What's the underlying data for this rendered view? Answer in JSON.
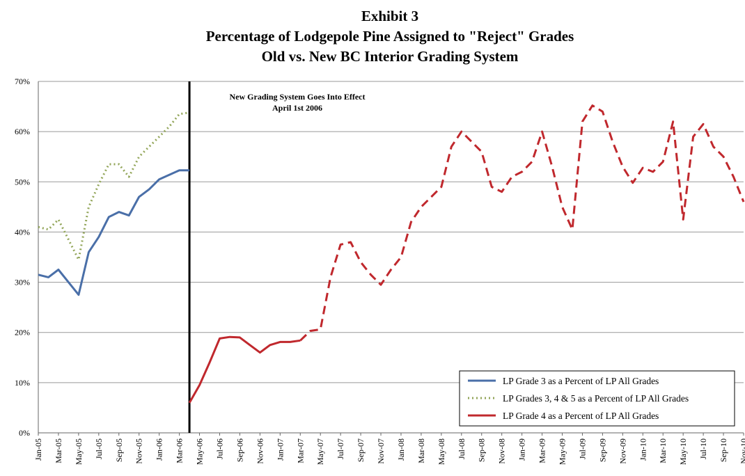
{
  "chart_data": {
    "type": "line",
    "title": [
      "Exhibit 3",
      "Percentage of Lodgepole Pine Assigned to \"Reject\" Grades",
      "Old vs. New BC Interior Grading System"
    ],
    "categories": [
      "Jan-05",
      null,
      "Mar-05",
      null,
      "May-05",
      null,
      "Jul-05",
      null,
      "Sep-05",
      null,
      "Nov-05",
      null,
      "Jan-06",
      null,
      "Mar-06",
      null,
      "May-06",
      null,
      "Jul-06",
      null,
      "Sep-06",
      null,
      "Nov-06",
      null,
      "Jan-07",
      null,
      "Mar-07",
      null,
      "May-07",
      null,
      "Jul-07",
      null,
      "Sep-07",
      null,
      "Nov-07",
      null,
      "Jan-08",
      null,
      "Mar-08",
      null,
      "May-08",
      null,
      "Jul-08",
      null,
      "Sep-08",
      null,
      "Nov-08",
      null,
      "Jan-09",
      null,
      "Mar-09",
      null,
      "May-09",
      null,
      "Jul-09",
      null,
      "Sep-09",
      null,
      "Nov-09",
      null,
      "Jan-10",
      null,
      "Mar-10",
      null,
      "May-10",
      null,
      "Jul-10",
      null,
      "Sep-10",
      null,
      "Nov-10"
    ],
    "series": [
      {
        "name": "LP Grade 3 as a Percent of LP All Grades",
        "color": "#4a6fa8",
        "style": "solid",
        "values": [
          31.5,
          31,
          32.5,
          30,
          27.5,
          36,
          39,
          43,
          44,
          43.3,
          47,
          48.5,
          50.5,
          51.4,
          52.3,
          52.3,
          null,
          null,
          null,
          null,
          null,
          null,
          null,
          null,
          null,
          null,
          null,
          null,
          null,
          null,
          null,
          null,
          null,
          null,
          null,
          null,
          null,
          null,
          null,
          null,
          null,
          null,
          null,
          null,
          null,
          null,
          null,
          null,
          null,
          null,
          null,
          null,
          null,
          null,
          null,
          null,
          null,
          null,
          null,
          null,
          null,
          null,
          null,
          null,
          null,
          null,
          null,
          null,
          null,
          null,
          null
        ]
      },
      {
        "name": "LP Grades 3, 4 & 5 as a Percent of LP All Grades",
        "color": "#93a65a",
        "style": "dotted",
        "values": [
          41,
          40.5,
          42.5,
          38.5,
          34.5,
          45,
          49.5,
          53.5,
          53.5,
          51,
          55,
          57,
          59,
          61,
          63.5,
          63.8,
          null,
          null,
          null,
          null,
          null,
          null,
          null,
          null,
          null,
          null,
          null,
          null,
          null,
          null,
          null,
          null,
          null,
          null,
          null,
          null,
          null,
          null,
          null,
          null,
          null,
          null,
          null,
          null,
          null,
          null,
          null,
          null,
          null,
          null,
          null,
          null,
          null,
          null,
          null,
          null,
          null,
          null,
          null,
          null,
          null,
          null,
          null,
          null,
          null,
          null,
          null,
          null,
          null,
          null,
          null
        ]
      },
      {
        "name": "LP Grade 4 as a Percent of LP All Grades",
        "color": "#c0282d",
        "style": "solid",
        "dashed_from_index": 26,
        "values": [
          null,
          null,
          null,
          null,
          null,
          null,
          null,
          null,
          null,
          null,
          null,
          null,
          null,
          null,
          null,
          6,
          9.5,
          14,
          18.8,
          19.1,
          19,
          17.5,
          16,
          17.5,
          18.1,
          18.1,
          18.4,
          20.3,
          20.6,
          31,
          37.5,
          38,
          34,
          31.5,
          29.5,
          32.5,
          35,
          42,
          45,
          47,
          49,
          57,
          60,
          58,
          56,
          49,
          48,
          51,
          52,
          54,
          60,
          53,
          45,
          40.5,
          62,
          65.2,
          64,
          58,
          53,
          49.8,
          52.8,
          52,
          54,
          62,
          42.5,
          59,
          61.5,
          57,
          55,
          51,
          46
        ]
      }
    ],
    "ylim": [
      0,
      70
    ],
    "yticks": [
      {
        "value": 0,
        "label": "0%"
      },
      {
        "value": 10,
        "label": "10%"
      },
      {
        "value": 20,
        "label": "20%"
      },
      {
        "value": 30,
        "label": "30%"
      },
      {
        "value": 40,
        "label": "40%"
      },
      {
        "value": 50,
        "label": "50%"
      },
      {
        "value": 60,
        "label": "60%"
      },
      {
        "value": 70,
        "label": "70%"
      }
    ],
    "grid": true,
    "legend": "lower right",
    "annotation": {
      "text": [
        "New Grading System Goes Into Effect",
        "April 1st 2006"
      ],
      "x_index": 15
    }
  }
}
